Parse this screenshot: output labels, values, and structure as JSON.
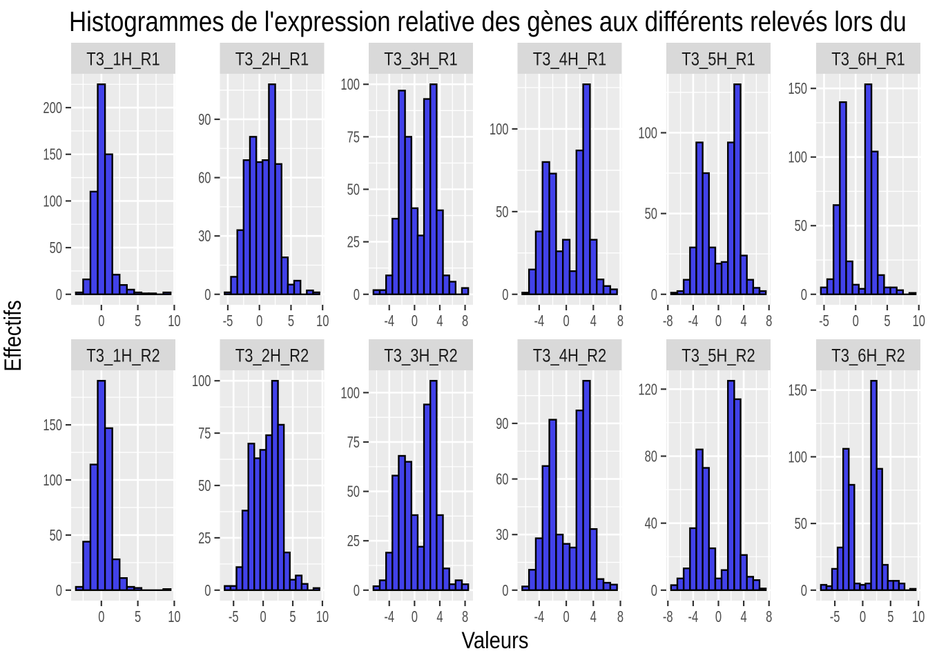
{
  "chart_data": {
    "type": "bar",
    "subtype": "faceted-histograms",
    "title": "Histogrammes de l'expression relative des gènes aux différents relevés lors du",
    "xlabel": "Valeurs",
    "ylabel": "Effectifs",
    "facet_grid": {
      "rows": 2,
      "cols": 6
    },
    "legend": "none",
    "style": {
      "bar_fill": "#4242EA",
      "bar_stroke": "#000000",
      "panel_bg": "#EBEBEB",
      "strip_bg": "#D9D9D9",
      "strip_text": "#1A1A1A",
      "grid_color": "#FFFFFF",
      "tick_label_color": "#4D4D4D",
      "tick_mark_color": "#333333",
      "title_color": "#000000"
    },
    "panels": [
      {
        "title": "T3_1H_R1",
        "bin_start": -3.5,
        "bin_width": 1,
        "counts": [
          2,
          16,
          110,
          225,
          150,
          21,
          10,
          5,
          2,
          1,
          1,
          0,
          2
        ],
        "x_ticks": [
          0,
          5,
          10
        ],
        "y_ticks": [
          0,
          50,
          100,
          150,
          200
        ]
      },
      {
        "title": "T3_2H_R1",
        "bin_start": -5.5,
        "bin_width": 1,
        "counts": [
          1,
          9,
          33,
          69,
          81,
          68,
          69,
          108,
          67,
          19,
          5,
          7,
          0,
          2,
          1
        ],
        "x_ticks": [
          -5,
          0,
          5,
          10
        ],
        "y_ticks": [
          0,
          30,
          60,
          90
        ]
      },
      {
        "title": "T3_3H_R1",
        "bin_start": -6.5,
        "bin_width": 1,
        "counts": [
          2,
          2,
          9,
          36,
          97,
          75,
          41,
          28,
          93,
          100,
          40,
          9,
          6,
          0,
          3
        ],
        "x_ticks": [
          -4,
          0,
          4,
          8
        ],
        "y_ticks": [
          0,
          25,
          50,
          75,
          100
        ]
      },
      {
        "title": "T3_4H_R1",
        "bin_start": -6.5,
        "bin_width": 1,
        "counts": [
          1,
          15,
          38,
          80,
          73,
          26,
          33,
          14,
          87,
          127,
          33,
          9,
          5,
          3
        ],
        "x_ticks": [
          -4,
          0,
          4,
          8
        ],
        "y_ticks": [
          0,
          50,
          100
        ]
      },
      {
        "title": "T3_5H_R1",
        "bin_start": -7.5,
        "bin_width": 1,
        "counts": [
          1,
          2,
          9,
          29,
          94,
          75,
          29,
          19,
          20,
          94,
          130,
          24,
          9,
          4,
          2
        ],
        "x_ticks": [
          -8,
          -4,
          0,
          4,
          8
        ],
        "y_ticks": [
          0,
          50,
          100
        ]
      },
      {
        "title": "T3_6H_R1",
        "bin_start": -5.5,
        "bin_width": 1,
        "counts": [
          5,
          11,
          65,
          140,
          24,
          7,
          4,
          153,
          104,
          14,
          5,
          5,
          3,
          0,
          1
        ],
        "x_ticks": [
          -5,
          0,
          5,
          10
        ],
        "y_ticks": [
          0,
          50,
          100,
          150
        ]
      },
      {
        "title": "T3_1H_R2",
        "bin_start": -3.5,
        "bin_width": 1,
        "counts": [
          3,
          44,
          114,
          190,
          147,
          28,
          11,
          3,
          2,
          0,
          0,
          0,
          1
        ],
        "x_ticks": [
          0,
          5,
          10
        ],
        "y_ticks": [
          0,
          50,
          100,
          150
        ]
      },
      {
        "title": "T3_2H_R2",
        "bin_start": -6.5,
        "bin_width": 1,
        "counts": [
          2,
          2,
          11,
          38,
          70,
          63,
          67,
          74,
          100,
          79,
          18,
          5,
          7,
          3,
          0,
          1
        ],
        "x_ticks": [
          -5,
          0,
          5,
          10
        ],
        "y_ticks": [
          0,
          25,
          50,
          75,
          100
        ]
      },
      {
        "title": "T3_3H_R2",
        "bin_start": -6.5,
        "bin_width": 1,
        "counts": [
          2,
          5,
          19,
          58,
          68,
          65,
          38,
          22,
          94,
          106,
          38,
          11,
          3,
          5,
          3
        ],
        "x_ticks": [
          -4,
          0,
          4,
          8
        ],
        "y_ticks": [
          0,
          25,
          50,
          75,
          100
        ]
      },
      {
        "title": "T3_4H_R2",
        "bin_start": -6.5,
        "bin_width": 1,
        "counts": [
          2,
          11,
          28,
          67,
          92,
          30,
          25,
          23,
          97,
          113,
          33,
          6,
          4,
          3
        ],
        "x_ticks": [
          -4,
          0,
          4,
          8
        ],
        "y_ticks": [
          0,
          30,
          60,
          90
        ]
      },
      {
        "title": "T3_5H_R2",
        "bin_start": -7.5,
        "bin_width": 1,
        "counts": [
          3,
          7,
          13,
          37,
          84,
          73,
          25,
          7,
          12,
          125,
          114,
          21,
          8,
          6,
          1
        ],
        "x_ticks": [
          -8,
          -4,
          0,
          4,
          8
        ],
        "y_ticks": [
          0,
          40,
          80,
          120
        ]
      },
      {
        "title": "T3_6H_R2",
        "bin_start": -7.5,
        "bin_width": 1,
        "counts": [
          4,
          3,
          16,
          32,
          106,
          79,
          5,
          4,
          5,
          157,
          91,
          19,
          7,
          7,
          5,
          0,
          1
        ],
        "x_ticks": [
          -5,
          0,
          5,
          10
        ],
        "y_ticks": [
          0,
          50,
          100,
          150
        ]
      }
    ]
  }
}
